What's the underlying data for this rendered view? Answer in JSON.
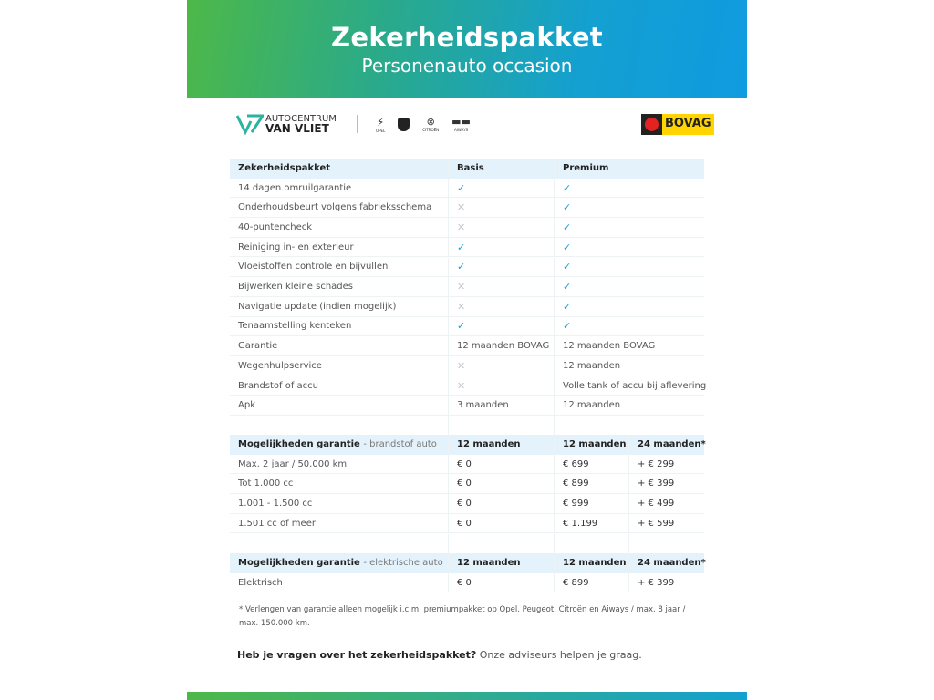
{
  "header": {
    "title": "Zekerheidspakket",
    "subtitle": "Personenauto occasion"
  },
  "brand": {
    "name_line1": "AUTOCENTRUM",
    "name_line2": "VAN VLIET",
    "partner_logos": [
      "OPEL",
      "Peugeot",
      "CITROËN",
      "AIWAYS"
    ],
    "bovag": "BOVAG"
  },
  "colors": {
    "check": "#1aa0d8",
    "header_row": "#e3f2fb",
    "gradient_start": "#4db848",
    "gradient_end": "#0f9be0"
  },
  "package_table": {
    "headers": [
      "Zekerheidspakket",
      "Basis",
      "Premium"
    ],
    "rows": [
      {
        "label": "14 dagen omruilgarantie",
        "basis": "check",
        "premium": "check"
      },
      {
        "label": "Onderhoudsbeurt volgens fabrieksschema",
        "basis": "cross",
        "premium": "check"
      },
      {
        "label": "40-puntencheck",
        "basis": "cross",
        "premium": "check"
      },
      {
        "label": "Reiniging in- en exterieur",
        "basis": "check",
        "premium": "check"
      },
      {
        "label": "Vloeistoffen controle en bijvullen",
        "basis": "check",
        "premium": "check"
      },
      {
        "label": "Bijwerken kleine schades",
        "basis": "cross",
        "premium": "check"
      },
      {
        "label": "Navigatie update (indien mogelijk)",
        "basis": "cross",
        "premium": "check"
      },
      {
        "label": "Tenaamstelling kenteken",
        "basis": "check",
        "premium": "check"
      },
      {
        "label": "Garantie",
        "basis": "12 maanden BOVAG",
        "premium": "12 maanden BOVAG"
      },
      {
        "label": "Wegenhulpservice",
        "basis": "cross",
        "premium": "12 maanden"
      },
      {
        "label": "Brandstof of accu",
        "basis": "cross",
        "premium": "Volle tank of accu bij aflevering"
      },
      {
        "label": "Apk",
        "basis": "3 maanden",
        "premium": "12 maanden"
      }
    ]
  },
  "fuel_table": {
    "title": "Mogelijkheden garantie",
    "subtitle": "- brandstof auto",
    "headers": [
      "12 maanden",
      "12 maanden",
      "24 maanden*"
    ],
    "rows": [
      [
        "Max. 2 jaar / 50.000 km",
        "€ 0",
        "€ 699",
        "+ € 299"
      ],
      [
        "Tot 1.000 cc",
        "€ 0",
        "€ 899",
        "+ € 399"
      ],
      [
        "1.001 - 1.500 cc",
        "€ 0",
        "€ 999",
        "+ € 499"
      ],
      [
        "1.501 cc of meer",
        "€ 0",
        "€ 1.199",
        "+ € 599"
      ]
    ]
  },
  "electric_table": {
    "title": "Mogelijkheden garantie",
    "subtitle": "- elektrische auto",
    "headers": [
      "12 maanden",
      "12 maanden",
      "24 maanden*"
    ],
    "rows": [
      [
        "Elektrisch",
        "€ 0",
        "€ 899",
        "+ € 399"
      ]
    ]
  },
  "footnote": "* Verlengen van garantie alleen mogelijk i.c.m. premiumpakket op Opel, Peugeot, Citroën en Aiways / max. 8 jaar / max. 150.000 km.",
  "questions": {
    "bold": "Heb je vragen over het zekerheidspakket?",
    "text": " Onze adviseurs helpen je graag."
  }
}
